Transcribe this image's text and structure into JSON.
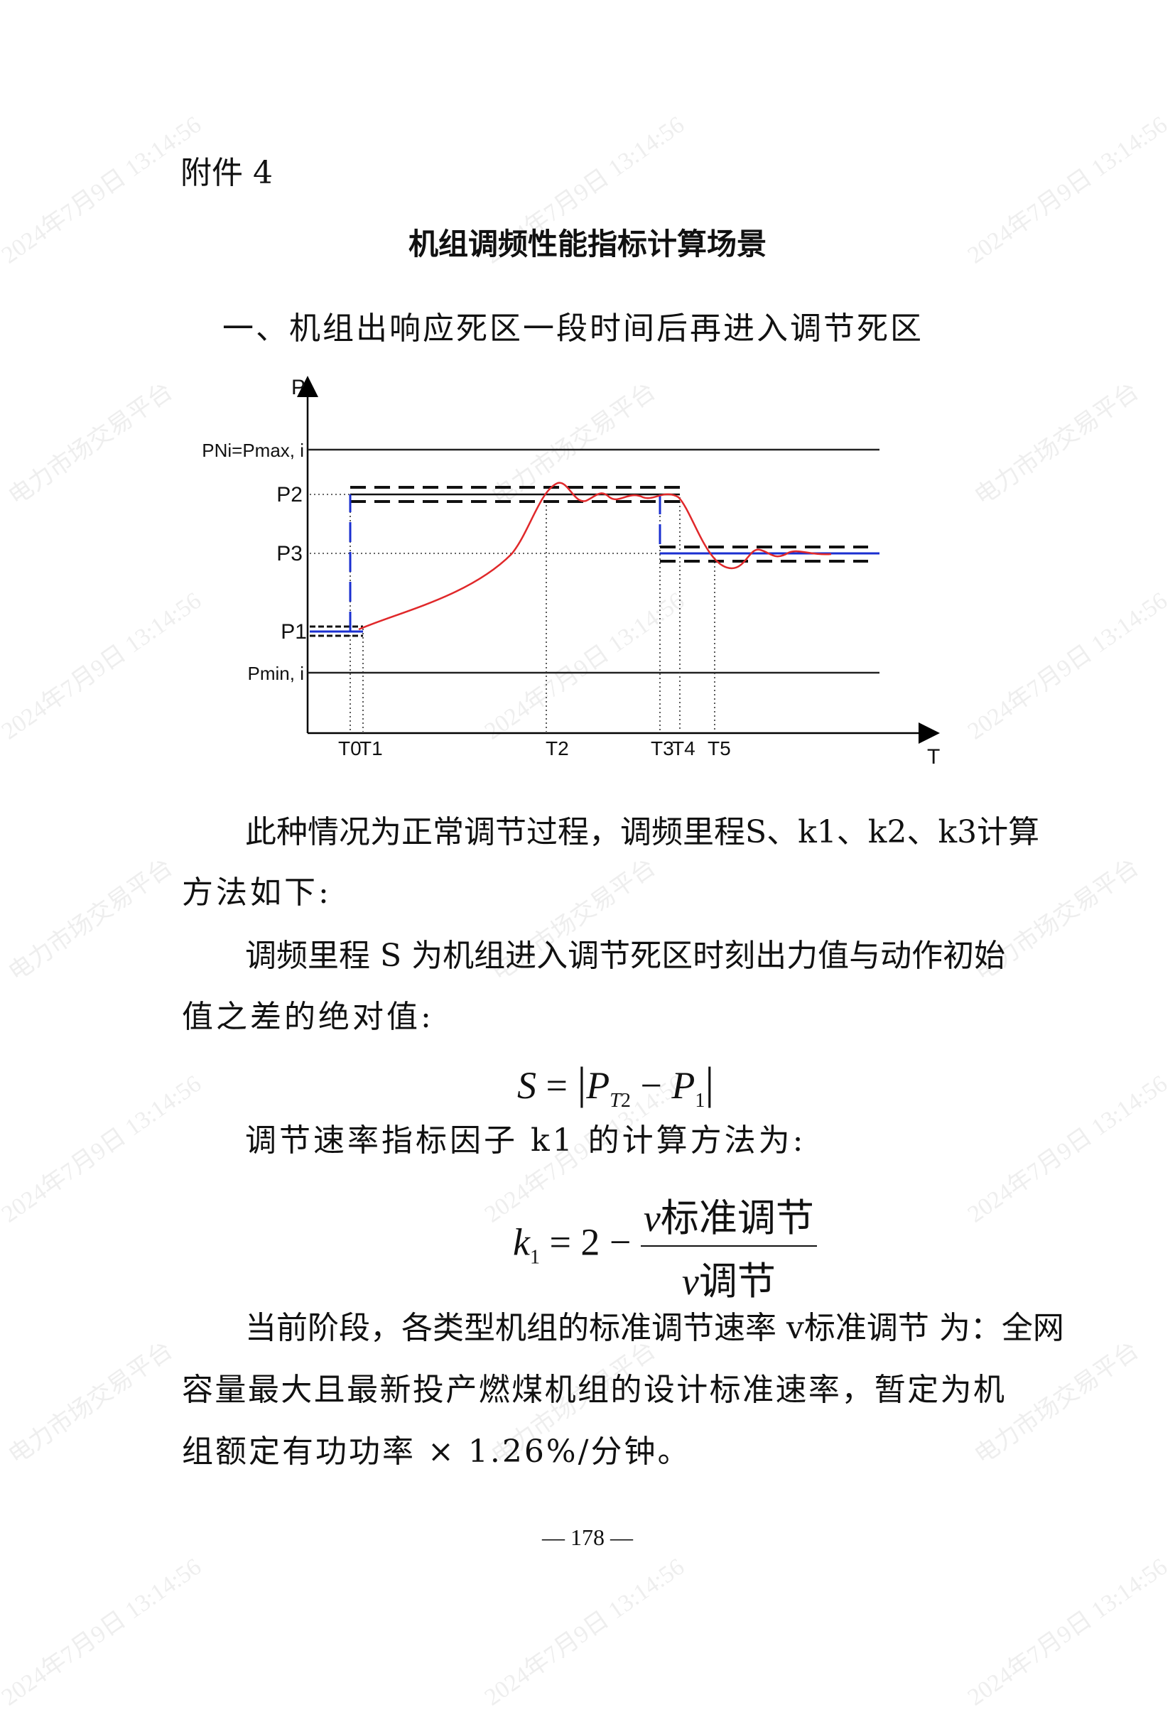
{
  "attachment_label": "附件 4",
  "title": "机组调频性能指标计算场景",
  "section_heading": "一、机组出响应死区一段时间后再进入调节死区",
  "diagram": {
    "y_axis_label": "P",
    "x_axis_label": "T",
    "y_labels": {
      "pmax": "PNi=Pmax, i",
      "p2": "P2",
      "p3": "P3",
      "p1": "P1",
      "pmin": "Pmin, i"
    },
    "x_labels": [
      "T0",
      "T1",
      "T2",
      "T3",
      "T4",
      "T5"
    ],
    "colors": {
      "response_curve": "#e0282a",
      "command": "#1a2fd0",
      "deadband": "#111111"
    }
  },
  "paragraphs": {
    "p1_line1": "此种情况为正常调节过程，调频里程S、k1、k2、k3计算",
    "p1_line2": "方法如下:",
    "p2_line1": "调频里程 S 为机组进入调节死区时刻出力值与动作初始",
    "p2_line2": "值之差的绝对值:",
    "formula_s": "S = |P_T2 − P1|",
    "p3": "调节速率指标因子 k1 的计算方法为:",
    "formula_k1": "k1 = 2 − v标准调节 / v调节",
    "p4_line1": "当前阶段，各类型机组的标准调节速率 v标准调节 为：全网",
    "p4_line2": "容量最大且最新投产燃煤机组的设计标准速率，暂定为机",
    "p4_line3": "组额定有功功率 × 1.26%/分钟。"
  },
  "page_number": "— 178 —",
  "watermarks": {
    "timestamp": "2024年7月9日 13:14:56",
    "platform": "电力市场交易平台"
  }
}
